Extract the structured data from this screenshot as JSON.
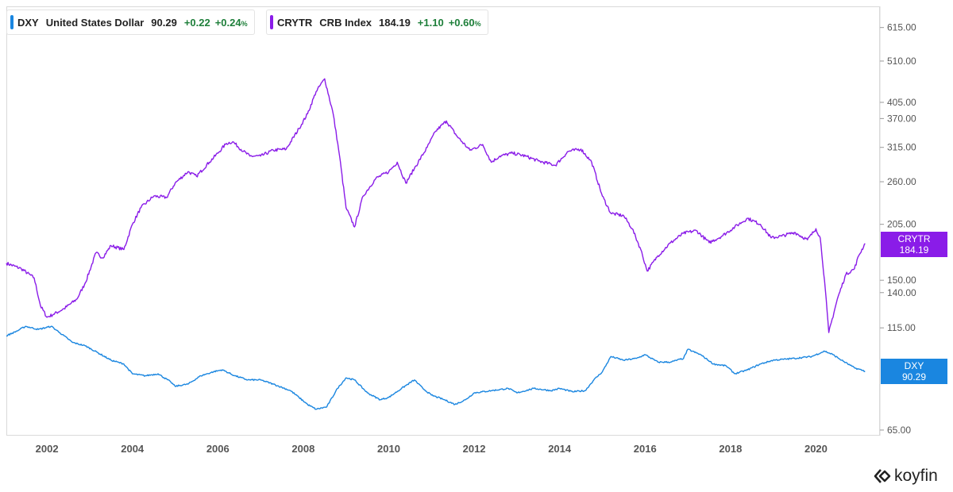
{
  "legend": [
    {
      "ticker": "DXY",
      "name": "United States Dollar",
      "last": "90.29",
      "change": "+0.22",
      "pct": "+0.24",
      "pct_unit": "%",
      "color": "#1a86e0"
    },
    {
      "ticker": "CRYTR",
      "name": "CRB Index",
      "last": "184.19",
      "change": "+1.10",
      "pct": "+0.60",
      "pct_unit": "%",
      "color": "#8a1ce8"
    }
  ],
  "badges": {
    "crytr": {
      "ticker": "CRYTR",
      "value": "184.19"
    },
    "dxy": {
      "ticker": "DXY",
      "value": "90.29"
    }
  },
  "logo": {
    "text": "koyfin"
  },
  "chart_data": {
    "type": "line",
    "y_scale": "log",
    "ylim": [
      63,
      680
    ],
    "xlim": [
      2001.05,
      2021.2
    ],
    "grid": false,
    "yticks": [
      615,
      510,
      405,
      370,
      315,
      260,
      205,
      150,
      140,
      115,
      65
    ],
    "ytick_labels": [
      "615.00",
      "510.00",
      "405.00",
      "370.00",
      "315.00",
      "260.00",
      "205.00",
      "150.00",
      "140.00",
      "115.00",
      "65.00"
    ],
    "xticks": [
      2002,
      2004,
      2006,
      2008,
      2010,
      2012,
      2014,
      2016,
      2018,
      2020
    ],
    "xtick_labels": [
      "2002",
      "2004",
      "2006",
      "2008",
      "2010",
      "2012",
      "2014",
      "2016",
      "2018",
      "2020"
    ],
    "series": [
      {
        "name": "CRYTR",
        "color": "#8a1ce8",
        "points": [
          [
            2001.05,
            165
          ],
          [
            2001.4,
            160
          ],
          [
            2001.7,
            152
          ],
          [
            2001.85,
            130
          ],
          [
            2002.0,
            122
          ],
          [
            2002.15,
            124
          ],
          [
            2002.4,
            128
          ],
          [
            2002.7,
            135
          ],
          [
            2002.9,
            148
          ],
          [
            2003.15,
            175
          ],
          [
            2003.3,
            170
          ],
          [
            2003.5,
            182
          ],
          [
            2003.8,
            178
          ],
          [
            2004.0,
            205
          ],
          [
            2004.2,
            225
          ],
          [
            2004.5,
            240
          ],
          [
            2004.8,
            238
          ],
          [
            2005.0,
            258
          ],
          [
            2005.3,
            275
          ],
          [
            2005.5,
            268
          ],
          [
            2005.8,
            290
          ],
          [
            2006.0,
            305
          ],
          [
            2006.2,
            322
          ],
          [
            2006.35,
            325
          ],
          [
            2006.6,
            308
          ],
          [
            2006.75,
            300
          ],
          [
            2007.0,
            300
          ],
          [
            2007.3,
            310
          ],
          [
            2007.6,
            312
          ],
          [
            2007.9,
            350
          ],
          [
            2008.1,
            380
          ],
          [
            2008.3,
            430
          ],
          [
            2008.5,
            462
          ],
          [
            2008.7,
            380
          ],
          [
            2008.85,
            300
          ],
          [
            2009.0,
            225
          ],
          [
            2009.2,
            202
          ],
          [
            2009.4,
            240
          ],
          [
            2009.7,
            265
          ],
          [
            2010.0,
            275
          ],
          [
            2010.2,
            290
          ],
          [
            2010.4,
            258
          ],
          [
            2010.6,
            280
          ],
          [
            2010.9,
            315
          ],
          [
            2011.1,
            345
          ],
          [
            2011.35,
            365
          ],
          [
            2011.6,
            335
          ],
          [
            2011.9,
            310
          ],
          [
            2012.2,
            320
          ],
          [
            2012.4,
            290
          ],
          [
            2012.6,
            300
          ],
          [
            2012.9,
            305
          ],
          [
            2013.2,
            300
          ],
          [
            2013.5,
            292
          ],
          [
            2013.9,
            285
          ],
          [
            2014.2,
            308
          ],
          [
            2014.5,
            312
          ],
          [
            2014.75,
            290
          ],
          [
            2015.0,
            240
          ],
          [
            2015.2,
            218
          ],
          [
            2015.5,
            215
          ],
          [
            2015.7,
            200
          ],
          [
            2015.9,
            178
          ],
          [
            2016.05,
            158
          ],
          [
            2016.3,
            172
          ],
          [
            2016.6,
            185
          ],
          [
            2016.9,
            195
          ],
          [
            2017.2,
            198
          ],
          [
            2017.5,
            185
          ],
          [
            2017.8,
            192
          ],
          [
            2018.1,
            202
          ],
          [
            2018.4,
            212
          ],
          [
            2018.7,
            205
          ],
          [
            2018.95,
            190
          ],
          [
            2019.2,
            192
          ],
          [
            2019.5,
            196
          ],
          [
            2019.8,
            188
          ],
          [
            2020.0,
            200
          ],
          [
            2020.1,
            190
          ],
          [
            2020.2,
            150
          ],
          [
            2020.3,
            112
          ],
          [
            2020.5,
            135
          ],
          [
            2020.7,
            155
          ],
          [
            2020.9,
            160
          ],
          [
            2021.0,
            172
          ],
          [
            2021.15,
            184.19
          ]
        ]
      },
      {
        "name": "DXY",
        "color": "#1a86e0",
        "points": [
          [
            2001.05,
            110
          ],
          [
            2001.3,
            113
          ],
          [
            2001.5,
            116
          ],
          [
            2001.8,
            114
          ],
          [
            2002.1,
            116
          ],
          [
            2002.3,
            112
          ],
          [
            2002.6,
            106
          ],
          [
            2002.9,
            104
          ],
          [
            2003.2,
            100
          ],
          [
            2003.5,
            96
          ],
          [
            2003.8,
            94
          ],
          [
            2004.0,
            89
          ],
          [
            2004.3,
            88
          ],
          [
            2004.6,
            89
          ],
          [
            2004.9,
            85
          ],
          [
            2005.0,
            83
          ],
          [
            2005.3,
            84
          ],
          [
            2005.6,
            88
          ],
          [
            2005.9,
            90
          ],
          [
            2006.1,
            91
          ],
          [
            2006.4,
            88
          ],
          [
            2006.7,
            86
          ],
          [
            2007.0,
            86
          ],
          [
            2007.3,
            84
          ],
          [
            2007.7,
            81
          ],
          [
            2007.9,
            78
          ],
          [
            2008.1,
            75
          ],
          [
            2008.3,
            73
          ],
          [
            2008.55,
            74
          ],
          [
            2008.8,
            82
          ],
          [
            2009.0,
            87
          ],
          [
            2009.2,
            86
          ],
          [
            2009.5,
            80
          ],
          [
            2009.8,
            77
          ],
          [
            2010.0,
            78
          ],
          [
            2010.3,
            82
          ],
          [
            2010.6,
            86
          ],
          [
            2010.8,
            82
          ],
          [
            2011.0,
            79
          ],
          [
            2011.3,
            77
          ],
          [
            2011.55,
            75
          ],
          [
            2011.8,
            77
          ],
          [
            2012.0,
            80
          ],
          [
            2012.4,
            81
          ],
          [
            2012.8,
            82
          ],
          [
            2013.0,
            80
          ],
          [
            2013.4,
            82
          ],
          [
            2013.8,
            81
          ],
          [
            2014.0,
            82
          ],
          [
            2014.3,
            80.5
          ],
          [
            2014.6,
            81
          ],
          [
            2014.8,
            86
          ],
          [
            2015.0,
            90
          ],
          [
            2015.2,
            98
          ],
          [
            2015.5,
            96
          ],
          [
            2015.8,
            97
          ],
          [
            2016.0,
            99
          ],
          [
            2016.3,
            95
          ],
          [
            2016.6,
            95
          ],
          [
            2016.9,
            97
          ],
          [
            2017.0,
            102
          ],
          [
            2017.3,
            99
          ],
          [
            2017.6,
            94
          ],
          [
            2017.9,
            93
          ],
          [
            2018.1,
            89
          ],
          [
            2018.4,
            91
          ],
          [
            2018.7,
            94
          ],
          [
            2019.0,
            96
          ],
          [
            2019.5,
            97
          ],
          [
            2019.9,
            98
          ],
          [
            2020.2,
            101
          ],
          [
            2020.4,
            99
          ],
          [
            2020.6,
            96
          ],
          [
            2020.9,
            92
          ],
          [
            2021.15,
            90.29
          ]
        ]
      }
    ]
  }
}
